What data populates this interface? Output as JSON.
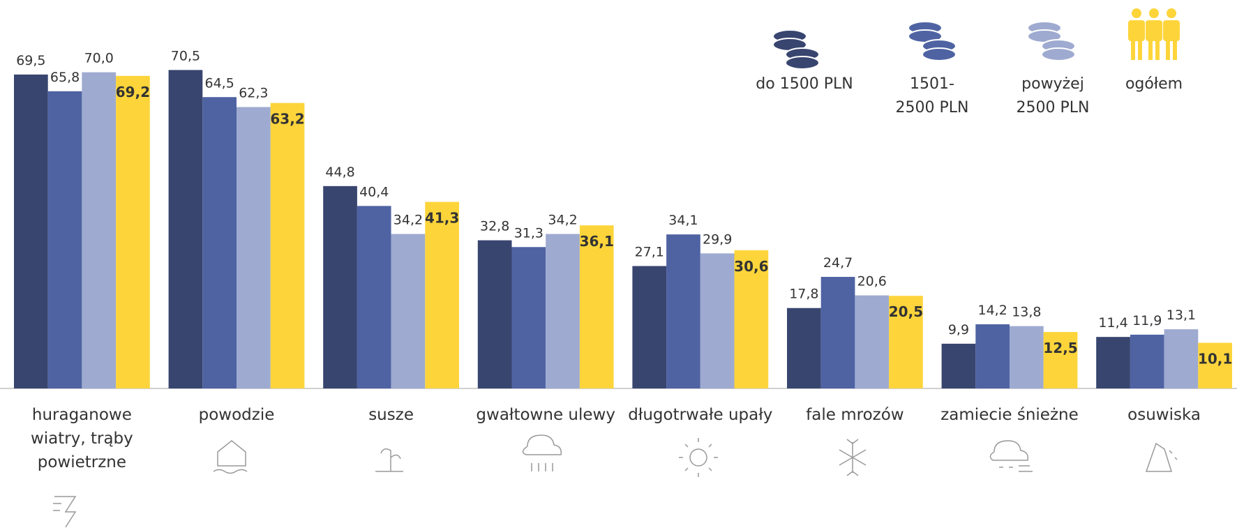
{
  "chart_data": {
    "type": "bar",
    "categories": [
      "huraganowe wiatry, trąby powietrzne",
      "powodzie",
      "susze",
      "gwałtowne ulewy",
      "długotrwałe upały",
      "fale mrozów",
      "zamiecie śnieżne",
      "osuwiska"
    ],
    "series": [
      {
        "name": "do 1500 PLN",
        "color": "#38456f",
        "values": [
          69.5,
          70.5,
          44.8,
          32.8,
          27.1,
          17.8,
          9.9,
          11.4
        ],
        "value_labels": [
          "69,5",
          "70,5",
          "44,8",
          "32,8",
          "27,1",
          "17,8",
          "9,9",
          "11,4"
        ]
      },
      {
        "name": "1501- 2500 PLN",
        "color": "#4f63a3",
        "values": [
          65.8,
          64.5,
          40.4,
          31.3,
          34.1,
          24.7,
          14.2,
          11.9
        ],
        "value_labels": [
          "65,8",
          "64,5",
          "40,4",
          "31,3",
          "34,1",
          "24,7",
          "14,2",
          "11,9"
        ]
      },
      {
        "name": "powyżej 2500 PLN",
        "color": "#9eaad0",
        "values": [
          70.0,
          62.3,
          34.2,
          34.2,
          29.9,
          20.6,
          13.8,
          13.1
        ],
        "value_labels": [
          "70,0",
          "62,3",
          "34,2",
          "34,2",
          "29,9",
          "20,6",
          "13,8",
          "13,1"
        ]
      },
      {
        "name": "ogółem",
        "color": "#fdd53b",
        "values": [
          69.2,
          63.2,
          41.3,
          36.1,
          30.6,
          20.5,
          12.5,
          10.1
        ],
        "value_labels": [
          "69,2",
          "63,2",
          "41,3",
          "36,1",
          "30,6",
          "20,5",
          "12,5",
          "10,1"
        ]
      }
    ],
    "ylim": [
      0,
      86
    ]
  }
}
